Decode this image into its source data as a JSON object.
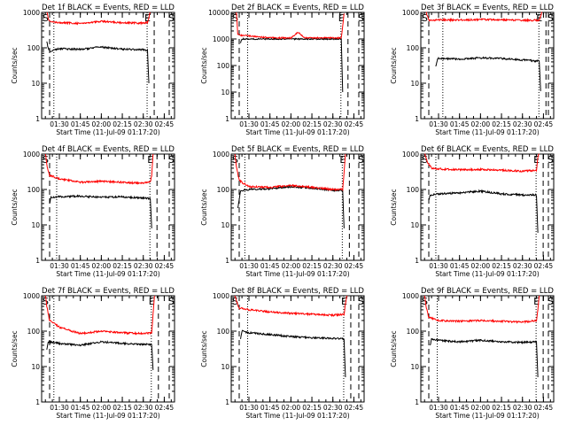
{
  "colors": {
    "events": "#000000",
    "lld": "#ff0000",
    "background": "#ffffff",
    "axis": "#000000"
  },
  "chart_data": [
    {
      "type": "line",
      "title": "Det 1f BLACK = Events, RED = LLD",
      "xlabel": "Start Time (11-Jul-09 01:17:20)",
      "ylabel": "Counts/sec",
      "yscale": "log",
      "ylim": [
        1,
        1000
      ],
      "xticks": [
        "01:30",
        "01:45",
        "02:00",
        "02:15",
        "02:30",
        "02:45"
      ],
      "yticks": [
        "1",
        "10",
        "100",
        "1000"
      ],
      "markers": [
        "S",
        "E",
        "S"
      ],
      "series": [
        {
          "name": "Events",
          "color": "#000000",
          "x": [
            "01:21",
            "01:22",
            "01:23",
            "01:30",
            "01:45",
            "01:55",
            "02:00",
            "02:15",
            "02:30",
            "02:33",
            "02:34"
          ],
          "values": [
            150,
            100,
            80,
            95,
            90,
            100,
            105,
            92,
            88,
            85,
            10
          ]
        },
        {
          "name": "LLD",
          "color": "#ff0000",
          "x": [
            "01:21",
            "01:22",
            "01:23",
            "01:30",
            "01:45",
            "02:00",
            "02:15",
            "02:30",
            "02:33",
            "02:34",
            "02:35"
          ],
          "values": [
            1200,
            700,
            550,
            520,
            490,
            560,
            510,
            500,
            520,
            700,
            1200
          ]
        }
      ]
    },
    {
      "type": "line",
      "title": "Det 2f BLACK = Events, RED = LLD",
      "xlabel": "Start Time (11-Jul-09 01:17:20)",
      "ylabel": "Counts/sec",
      "yscale": "log",
      "ylim": [
        1,
        10000
      ],
      "xticks": [
        "01:30",
        "01:45",
        "02:00",
        "02:15",
        "02:30",
        "02:45"
      ],
      "yticks": [
        "1",
        "10",
        "100",
        "1000",
        "10000"
      ],
      "markers": [
        "S",
        "E",
        "S"
      ],
      "series": [
        {
          "name": "Events",
          "color": "#000000",
          "x": [
            "01:24",
            "01:25",
            "01:30",
            "01:45",
            "02:00",
            "02:15",
            "02:30",
            "02:36",
            "02:37"
          ],
          "values": [
            700,
            1000,
            1000,
            1000,
            1000,
            1000,
            1000,
            1000,
            10
          ]
        },
        {
          "name": "LLD",
          "color": "#ff0000",
          "x": [
            "01:21",
            "01:22",
            "01:23",
            "01:30",
            "01:45",
            "02:00",
            "02:05",
            "02:10",
            "02:15",
            "02:30",
            "02:36",
            "02:37",
            "02:38"
          ],
          "values": [
            12000,
            1500,
            1400,
            1300,
            1100,
            1100,
            1800,
            1100,
            1100,
            1100,
            1100,
            3000,
            9000
          ]
        }
      ]
    },
    {
      "type": "line",
      "title": "Det 3f BLACK = Events, RED = LLD",
      "xlabel": "Start Time (11-Jul-09 01:17:20)",
      "ylabel": "Counts/sec",
      "yscale": "log",
      "ylim": [
        1,
        1000
      ],
      "xticks": [
        "01:30",
        "01:45",
        "02:00",
        "02:15",
        "02:30",
        "02:45"
      ],
      "yticks": [
        "1",
        "10",
        "100",
        "1000"
      ],
      "markers": [
        "S",
        "E",
        "S"
      ],
      "series": [
        {
          "name": "Events",
          "color": "#000000",
          "x": [
            "01:28",
            "01:29",
            "01:30",
            "01:45",
            "02:00",
            "02:15",
            "02:30",
            "02:42",
            "02:43"
          ],
          "values": [
            30,
            45,
            50,
            48,
            52,
            50,
            45,
            42,
            6
          ]
        },
        {
          "name": "LLD",
          "color": "#ff0000",
          "x": [
            "01:21",
            "01:22",
            "01:23",
            "01:30",
            "01:45",
            "02:00",
            "02:15",
            "02:30",
            "02:42",
            "02:43",
            "02:44"
          ],
          "values": [
            1100,
            800,
            600,
            620,
            610,
            630,
            620,
            600,
            600,
            800,
            1100
          ]
        }
      ]
    },
    {
      "type": "line",
      "title": "Det 4f BLACK = Events, RED = LLD",
      "xlabel": "Start Time (11-Jul-09 01:17:20)",
      "ylabel": "Counts/sec",
      "yscale": "log",
      "ylim": [
        1,
        1000
      ],
      "xticks": [
        "01:30",
        "01:45",
        "02:00",
        "02:15",
        "02:30",
        "02:45"
      ],
      "yticks": [
        "1",
        "10",
        "100",
        "1000"
      ],
      "markers": [
        "S",
        "E",
        "S"
      ],
      "series": [
        {
          "name": "Events",
          "color": "#000000",
          "x": [
            "01:23",
            "01:24",
            "01:30",
            "01:45",
            "02:00",
            "02:15",
            "02:30",
            "02:35",
            "02:36"
          ],
          "values": [
            40,
            60,
            62,
            65,
            60,
            62,
            58,
            55,
            8
          ]
        },
        {
          "name": "LLD",
          "color": "#ff0000",
          "x": [
            "01:20",
            "01:21",
            "01:23",
            "01:30",
            "01:45",
            "02:00",
            "02:15",
            "02:30",
            "02:35",
            "02:36",
            "02:37"
          ],
          "values": [
            1200,
            500,
            250,
            200,
            160,
            170,
            160,
            150,
            160,
            250,
            1000
          ]
        }
      ]
    },
    {
      "type": "line",
      "title": "Det 5f BLACK = Events, RED = LLD",
      "xlabel": "Start Time (11-Jul-09 01:17:20)",
      "ylabel": "Counts/sec",
      "yscale": "log",
      "ylim": [
        1,
        1000
      ],
      "xticks": [
        "01:30",
        "01:45",
        "02:00",
        "02:15",
        "02:30",
        "02:45"
      ],
      "yticks": [
        "1",
        "10",
        "100",
        "1000"
      ],
      "markers": [
        "S",
        "E",
        "S"
      ],
      "series": [
        {
          "name": "Events",
          "color": "#000000",
          "x": [
            "01:22",
            "01:24",
            "01:30",
            "01:45",
            "02:00",
            "02:15",
            "02:30",
            "02:37",
            "02:38"
          ],
          "values": [
            30,
            90,
            100,
            105,
            120,
            110,
            95,
            95,
            8
          ]
        },
        {
          "name": "LLD",
          "color": "#ff0000",
          "x": [
            "01:20",
            "01:21",
            "01:23",
            "01:30",
            "01:45",
            "02:00",
            "02:15",
            "02:30",
            "02:37",
            "02:38",
            "02:39"
          ],
          "values": [
            1000,
            450,
            180,
            120,
            115,
            130,
            115,
            100,
            100,
            300,
            1000
          ]
        }
      ]
    },
    {
      "type": "line",
      "title": "Det 6f BLACK = Events, RED = LLD",
      "xlabel": "Start Time (11-Jul-09 01:17:20)",
      "ylabel": "Counts/sec",
      "yscale": "log",
      "ylim": [
        1,
        1000
      ],
      "xticks": [
        "01:30",
        "01:45",
        "02:00",
        "02:15",
        "02:30",
        "02:45"
      ],
      "yticks": [
        "1",
        "10",
        "100",
        "1000"
      ],
      "markers": [
        "S",
        "E",
        "S"
      ],
      "series": [
        {
          "name": "Events",
          "color": "#000000",
          "x": [
            "01:23",
            "01:24",
            "01:30",
            "01:45",
            "02:00",
            "02:15",
            "02:30",
            "02:40",
            "02:41"
          ],
          "values": [
            50,
            70,
            75,
            80,
            90,
            75,
            70,
            70,
            6
          ]
        },
        {
          "name": "LLD",
          "color": "#ff0000",
          "x": [
            "01:20",
            "01:22",
            "01:25",
            "01:30",
            "01:45",
            "02:00",
            "02:15",
            "02:30",
            "02:40",
            "02:41",
            "02:42"
          ],
          "values": [
            1100,
            600,
            400,
            380,
            360,
            370,
            350,
            330,
            350,
            800,
            1200
          ]
        }
      ]
    },
    {
      "type": "line",
      "title": "Det 7f BLACK = Events, RED = LLD",
      "xlabel": "Start Time (11-Jul-09 01:17:20)",
      "ylabel": "Counts/sec",
      "yscale": "log",
      "ylim": [
        1,
        1000
      ],
      "xticks": [
        "01:30",
        "01:45",
        "02:00",
        "02:15",
        "02:30",
        "02:45"
      ],
      "yticks": [
        "1",
        "10",
        "100",
        "1000"
      ],
      "markers": [
        "S",
        "E",
        "S"
      ],
      "series": [
        {
          "name": "Events",
          "color": "#000000",
          "x": [
            "01:21",
            "01:22",
            "01:30",
            "01:45",
            "02:00",
            "02:15",
            "02:30",
            "02:36",
            "02:37"
          ],
          "values": [
            30,
            50,
            45,
            40,
            50,
            45,
            42,
            42,
            8
          ]
        },
        {
          "name": "LLD",
          "color": "#ff0000",
          "x": [
            "01:20",
            "01:21",
            "01:23",
            "01:30",
            "01:45",
            "02:00",
            "02:15",
            "02:30",
            "02:36",
            "02:37",
            "02:38"
          ],
          "values": [
            1100,
            500,
            200,
            130,
            85,
            100,
            90,
            85,
            90,
            300,
            1000
          ]
        }
      ]
    },
    {
      "type": "line",
      "title": "Det 8f BLACK = Events, RED = LLD",
      "xlabel": "Start Time (11-Jul-09 01:17:20)",
      "ylabel": "Counts/sec",
      "yscale": "log",
      "ylim": [
        1,
        1000
      ],
      "xticks": [
        "01:30",
        "01:45",
        "02:00",
        "02:15",
        "02:30",
        "02:45"
      ],
      "yticks": [
        "1",
        "10",
        "100",
        "1000"
      ],
      "markers": [
        "S",
        "E",
        "S"
      ],
      "series": [
        {
          "name": "Events",
          "color": "#000000",
          "x": [
            "01:24",
            "01:25",
            "01:30",
            "01:45",
            "02:00",
            "02:15",
            "02:30",
            "02:38",
            "02:39"
          ],
          "values": [
            60,
            100,
            90,
            80,
            70,
            65,
            62,
            60,
            5
          ]
        },
        {
          "name": "LLD",
          "color": "#ff0000",
          "x": [
            "01:20",
            "01:21",
            "01:23",
            "01:30",
            "01:45",
            "02:00",
            "02:15",
            "02:30",
            "02:38",
            "02:39",
            "02:40"
          ],
          "values": [
            1100,
            700,
            450,
            400,
            350,
            320,
            300,
            280,
            300,
            600,
            1000
          ]
        }
      ]
    },
    {
      "type": "line",
      "title": "Det 9f BLACK = Events, RED = LLD",
      "xlabel": "Start Time (11-Jul-09 01:17:20)",
      "ylabel": "Counts/sec",
      "yscale": "log",
      "ylim": [
        1,
        1000
      ],
      "xticks": [
        "01:30",
        "01:45",
        "02:00",
        "02:15",
        "02:30",
        "02:45"
      ],
      "yticks": [
        "1",
        "10",
        "100",
        "1000"
      ],
      "markers": [
        "S",
        "E",
        "S"
      ],
      "series": [
        {
          "name": "Events",
          "color": "#000000",
          "x": [
            "01:24",
            "01:25",
            "01:30",
            "01:45",
            "02:00",
            "02:15",
            "02:30",
            "02:40",
            "02:41"
          ],
          "values": [
            40,
            60,
            55,
            50,
            55,
            50,
            48,
            50,
            5
          ]
        },
        {
          "name": "LLD",
          "color": "#ff0000",
          "x": [
            "01:20",
            "01:21",
            "01:23",
            "01:30",
            "01:45",
            "02:00",
            "02:15",
            "02:30",
            "02:40",
            "02:41",
            "02:42"
          ],
          "values": [
            1100,
            500,
            250,
            200,
            190,
            200,
            190,
            180,
            200,
            400,
            1000
          ]
        }
      ]
    }
  ]
}
